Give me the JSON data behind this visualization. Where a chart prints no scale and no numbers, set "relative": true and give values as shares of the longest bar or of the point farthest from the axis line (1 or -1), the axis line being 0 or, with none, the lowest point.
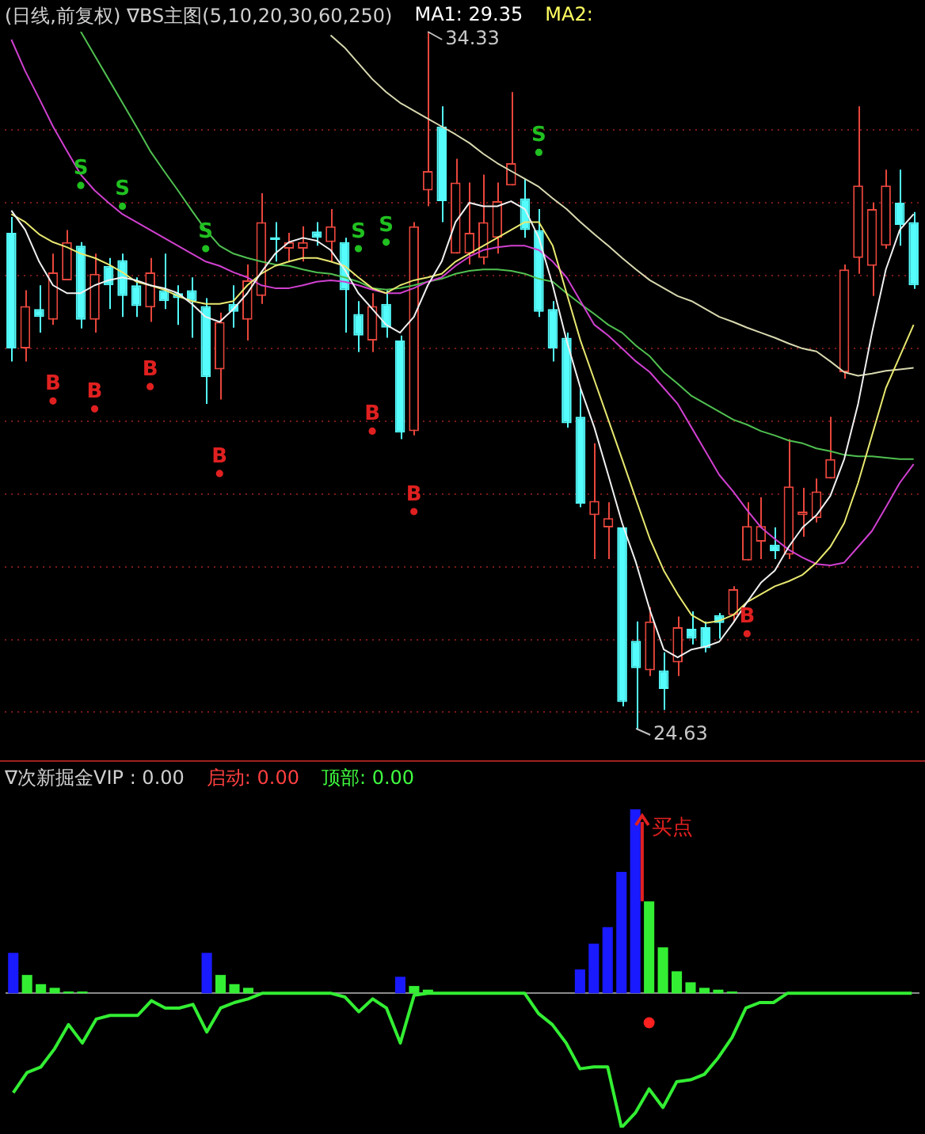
{
  "chart_data": [
    {
      "type": "candlestick",
      "title": "(日线,前复权) ∇BS主图(5,10,20,30,60,250)",
      "annotations": [
        "MA1: 29.35",
        "MA2:",
        "34.33",
        "24.63"
      ],
      "categories": [
        null,
        null,
        null,
        null,
        null,
        null,
        null,
        null,
        null,
        null,
        null,
        null,
        null,
        null,
        null,
        null,
        null,
        null,
        null,
        null,
        null,
        null,
        null,
        null,
        null,
        null,
        null,
        null,
        null,
        null,
        null,
        null,
        null,
        null,
        null,
        null,
        null,
        null,
        null,
        null,
        null,
        null,
        null,
        null,
        null,
        null,
        null,
        null,
        null,
        null,
        null,
        null,
        null,
        null,
        null,
        null,
        null,
        null,
        null,
        null,
        null,
        null,
        null,
        null,
        null,
        null
      ],
      "ohlc": [
        [
          31.53,
          31.75,
          29.74,
          29.92
        ],
        [
          29.92,
          30.73,
          29.74,
          30.51
        ],
        [
          30.47,
          30.8,
          30.14,
          30.36
        ],
        [
          30.32,
          31.24,
          30.25,
          30.98
        ],
        [
          30.87,
          31.57,
          30.87,
          31.4
        ],
        [
          31.35,
          31.4,
          30.2,
          30.32
        ],
        [
          30.32,
          31.24,
          30.14,
          30.96
        ],
        [
          31.07,
          31.18,
          30.47,
          30.8
        ],
        [
          31.15,
          31.24,
          30.36,
          30.65
        ],
        [
          30.8,
          30.91,
          30.36,
          30.51
        ],
        [
          30.49,
          31.18,
          30.29,
          30.98
        ],
        [
          30.73,
          31.24,
          30.47,
          30.58
        ],
        [
          30.69,
          30.8,
          30.25,
          30.62
        ],
        [
          30.73,
          30.91,
          30.07,
          30.58
        ],
        [
          30.51,
          30.62,
          29.15,
          29.52
        ],
        [
          29.63,
          30.42,
          29.21,
          30.29
        ],
        [
          30.54,
          30.8,
          30.21,
          30.43
        ],
        [
          30.32,
          31.09,
          30.03,
          30.87
        ],
        [
          30.65,
          32.08,
          30.54,
          31.68
        ],
        [
          31.47,
          31.68,
          31.13,
          31.43
        ],
        [
          31.31,
          31.53,
          31.13,
          31.4
        ],
        [
          31.31,
          31.62,
          31.13,
          31.4
        ],
        [
          31.55,
          31.68,
          31.35,
          31.46
        ],
        [
          31.4,
          31.86,
          31.13,
          31.62
        ],
        [
          31.4,
          31.46,
          30.14,
          30.73
        ],
        [
          30.4,
          30.58,
          29.87,
          30.1
        ],
        [
          30.03,
          30.69,
          29.87,
          30.51
        ],
        [
          30.54,
          30.73,
          30.07,
          30.21
        ],
        [
          30.03,
          30.1,
          28.66,
          28.75
        ],
        [
          28.77,
          31.68,
          28.71,
          31.62
        ],
        [
          32.12,
          34.33,
          31.9,
          32.39
        ],
        [
          33.01,
          33.29,
          31.68,
          31.97
        ],
        [
          31.24,
          32.56,
          31.24,
          32.23
        ],
        [
          31.24,
          32.23,
          31.09,
          31.53
        ],
        [
          31.18,
          32.34,
          31.09,
          31.68
        ],
        [
          31.46,
          32.23,
          31.24,
          31.97
        ],
        [
          32.19,
          33.49,
          32.19,
          32.5
        ],
        [
          32.01,
          32.28,
          31.46,
          31.57
        ],
        [
          31.57,
          31.86,
          30.36,
          30.43
        ],
        [
          30.47,
          30.58,
          29.74,
          29.92
        ],
        [
          30.07,
          30.14,
          28.82,
          28.88
        ],
        [
          28.97,
          29.37,
          27.71,
          27.76
        ],
        [
          27.6,
          28.6,
          26.99,
          27.8
        ],
        [
          27.43,
          27.78,
          26.99,
          27.56
        ],
        [
          27.43,
          27.43,
          24.94,
          25.0
        ],
        [
          25.85,
          26.12,
          24.63,
          25.47
        ],
        [
          25.44,
          26.32,
          25.36,
          26.12
        ],
        [
          25.44,
          25.69,
          24.89,
          25.18
        ],
        [
          25.55,
          26.19,
          25.36,
          26.04
        ],
        [
          26.02,
          26.26,
          25.8,
          25.88
        ],
        [
          26.04,
          26.12,
          25.69,
          25.75
        ],
        [
          26.21,
          26.24,
          25.88,
          26.1
        ],
        [
          26.21,
          26.61,
          26.12,
          26.57
        ],
        [
          26.97,
          27.78,
          26.97,
          27.45
        ],
        [
          27.23,
          27.85,
          26.99,
          27.45
        ],
        [
          27.19,
          27.43,
          26.99,
          27.1
        ],
        [
          27.05,
          28.66,
          26.99,
          28.0
        ],
        [
          27.6,
          27.98,
          27.3,
          27.65
        ],
        [
          27.56,
          28.11,
          27.5,
          27.93
        ],
        [
          28.11,
          28.97,
          28.11,
          28.38
        ],
        [
          29.59,
          31.09,
          29.5,
          31.02
        ],
        [
          31.18,
          33.29,
          30.96,
          32.19
        ],
        [
          31.07,
          31.95,
          30.65,
          31.86
        ],
        [
          31.35,
          32.41,
          31.31,
          32.19
        ],
        [
          31.95,
          32.41,
          31.35,
          31.64
        ],
        [
          31.68,
          31.82,
          30.75,
          30.8
        ]
      ],
      "colors": [
        "#54fcfc",
        "#e8463c",
        "#54fcfc",
        "#e8463c",
        "#e8463c",
        "#54fcfc",
        "#e8463c",
        "#54fcfc",
        "#54fcfc",
        "#54fcfc",
        "#e8463c",
        "#54fcfc",
        "#54fcfc",
        "#54fcfc",
        "#54fcfc",
        "#e8463c",
        "#54fcfc",
        "#e8463c",
        "#e8463c",
        "#54fcfc",
        "#e8463c",
        "#e8463c",
        "#54fcfc",
        "#e8463c",
        "#54fcfc",
        "#54fcfc",
        "#e8463c",
        "#54fcfc",
        "#54fcfc",
        "#e8463c",
        "#e8463c",
        "#54fcfc",
        "#e8463c",
        "#e8463c",
        "#e8463c",
        "#e8463c",
        "#e8463c",
        "#54fcfc",
        "#54fcfc",
        "#54fcfc",
        "#54fcfc",
        "#54fcfc",
        "#e8463c",
        "#e8463c",
        "#54fcfc",
        "#54fcfc",
        "#e8463c",
        "#54fcfc",
        "#e8463c",
        "#54fcfc",
        "#54fcfc",
        "#54fcfc",
        "#e8463c",
        "#e8463c",
        "#e8463c",
        "#54fcfc",
        "#e8463c",
        "#e8463c",
        "#e8463c",
        "#e8463c",
        "#e8463c",
        "#e8463c",
        "#e8463c",
        "#e8463c",
        "#54fcfc",
        "#54fcfc"
      ],
      "series": [
        {
          "type": "line",
          "color": "#f0f0f0",
          "values": [
            31.84,
            31.57,
            31.13,
            30.8,
            30.69,
            30.69,
            30.8,
            30.87,
            30.91,
            30.87,
            30.8,
            30.76,
            30.69,
            30.54,
            30.36,
            30.29,
            30.47,
            30.69,
            30.98,
            31.24,
            31.4,
            31.46,
            31.42,
            31.29,
            31.02,
            30.69,
            30.47,
            30.25,
            30.14,
            30.36,
            30.8,
            31.13,
            31.68,
            31.95,
            31.9,
            31.9,
            31.97,
            31.86,
            31.46,
            30.8,
            30.03,
            29.37,
            28.82,
            28.16,
            27.49,
            26.94,
            26.28,
            25.73,
            25.62,
            25.73,
            25.77,
            25.84,
            26.1,
            26.39,
            26.66,
            26.83,
            27.16,
            27.43,
            27.6,
            27.87,
            28.38,
            29.15,
            30.14,
            31.02,
            31.57,
            31.79
          ]
        },
        {
          "type": "line",
          "color": "#e8e870",
          "values": [
            31.79,
            31.68,
            31.51,
            31.4,
            31.33,
            31.24,
            31.18,
            31.09,
            30.98,
            30.85,
            30.8,
            30.74,
            30.65,
            30.58,
            30.54,
            30.54,
            30.58,
            30.8,
            30.96,
            31.07,
            31.13,
            31.18,
            31.18,
            31.13,
            31.07,
            30.91,
            30.76,
            30.69,
            30.8,
            30.87,
            30.91,
            30.96,
            31.13,
            31.24,
            31.35,
            31.46,
            31.57,
            31.68,
            31.68,
            31.35,
            30.69,
            30.03,
            29.48,
            28.93,
            28.38,
            27.82,
            27.27,
            26.83,
            26.5,
            26.21,
            26.1,
            26.13,
            26.21,
            26.39,
            26.5,
            26.61,
            26.68,
            26.77,
            26.94,
            27.16,
            27.49,
            28.05,
            28.71,
            29.37,
            29.81,
            30.25
          ]
        },
        {
          "type": "line",
          "color": "#d040d0",
          "values": [
            34.22,
            33.78,
            33.4,
            33.01,
            32.67,
            32.34,
            32.12,
            31.95,
            31.79,
            31.68,
            31.57,
            31.46,
            31.35,
            31.24,
            31.13,
            31.07,
            30.98,
            30.91,
            30.8,
            30.76,
            30.76,
            30.8,
            30.85,
            30.87,
            30.85,
            30.8,
            30.74,
            30.69,
            30.69,
            30.76,
            30.85,
            30.91,
            31.07,
            31.2,
            31.29,
            31.33,
            31.35,
            31.35,
            31.29,
            31.13,
            30.91,
            30.58,
            30.25,
            30.1,
            29.92,
            29.74,
            29.59,
            29.37,
            29.15,
            28.82,
            28.49,
            28.16,
            27.93,
            27.67,
            27.43,
            27.27,
            27.12,
            27.01,
            26.92,
            26.9,
            26.94,
            27.16,
            27.38,
            27.71,
            28.05,
            28.31
          ]
        },
        {
          "type": "line",
          "color": "#50c050",
          "values": [
            null,
            null,
            null,
            null,
            null,
            34.33,
            34.0,
            33.67,
            33.34,
            33.01,
            32.67,
            32.39,
            32.12,
            31.84,
            31.57,
            31.35,
            31.24,
            31.18,
            31.13,
            31.09,
            31.07,
            31.02,
            30.98,
            30.96,
            30.91,
            30.85,
            30.76,
            30.74,
            30.76,
            30.8,
            30.85,
            30.89,
            30.96,
            31.0,
            31.02,
            31.02,
            31.0,
            30.96,
            30.89,
            30.85,
            30.69,
            30.54,
            30.4,
            30.25,
            30.14,
            29.96,
            29.81,
            29.59,
            29.43,
            29.26,
            29.15,
            29.04,
            28.93,
            28.86,
            28.77,
            28.71,
            28.64,
            28.6,
            28.53,
            28.49,
            28.44,
            28.42,
            28.42,
            28.4,
            28.38,
            28.38
          ]
        },
        {
          "type": "line",
          "color": "#d8d8b0",
          "values": [
            null,
            null,
            null,
            null,
            null,
            null,
            null,
            null,
            null,
            null,
            null,
            null,
            null,
            null,
            null,
            null,
            null,
            null,
            null,
            null,
            null,
            null,
            null,
            34.28,
            34.11,
            33.89,
            33.67,
            33.49,
            33.34,
            33.23,
            33.12,
            33.01,
            32.9,
            32.78,
            32.63,
            32.5,
            32.39,
            32.28,
            32.17,
            32.01,
            31.86,
            31.68,
            31.51,
            31.35,
            31.18,
            31.02,
            30.87,
            30.76,
            30.65,
            30.58,
            30.47,
            30.36,
            30.29,
            30.21,
            30.14,
            30.07,
            29.99,
            29.92,
            29.88,
            29.74,
            29.59,
            29.54,
            29.57,
            29.61,
            29.63,
            29.65
          ]
        },
        {
          "type": "scatter",
          "color": "#e02020",
          "marker": "circle",
          "values": [
            null,
            null,
            null,
            29.19,
            null,
            null,
            29.08,
            null,
            null,
            null,
            29.39,
            null,
            null,
            null,
            null,
            28.18,
            null,
            null,
            null,
            null,
            null,
            null,
            null,
            null,
            null,
            null,
            28.77,
            null,
            null,
            27.65,
            null,
            null,
            null,
            null,
            null,
            null,
            null,
            null,
            null,
            null,
            null,
            null,
            null,
            null,
            null,
            null,
            null,
            null,
            null,
            null,
            null,
            null,
            null,
            25.95,
            null,
            null,
            null,
            null,
            null,
            null,
            null,
            null,
            null,
            null,
            null,
            null
          ],
          "value_labels": [
            null,
            null,
            null,
            "B",
            null,
            null,
            "B",
            null,
            null,
            null,
            "B",
            null,
            null,
            null,
            null,
            "B",
            null,
            null,
            null,
            null,
            null,
            null,
            null,
            null,
            null,
            null,
            "B",
            null,
            null,
            "B",
            null,
            null,
            null,
            null,
            null,
            null,
            null,
            null,
            null,
            null,
            null,
            null,
            null,
            null,
            null,
            null,
            null,
            null,
            null,
            null,
            null,
            null,
            null,
            "B",
            null,
            null,
            null,
            null,
            null,
            null,
            null,
            null,
            null,
            null,
            null,
            null
          ]
        },
        {
          "type": "scatter",
          "color": "#20c020",
          "marker": "circle",
          "values": [
            null,
            null,
            null,
            null,
            null,
            32.19,
            null,
            null,
            31.9,
            null,
            null,
            null,
            null,
            null,
            31.31,
            null,
            null,
            null,
            null,
            null,
            null,
            null,
            null,
            null,
            null,
            31.31,
            null,
            31.4,
            null,
            null,
            null,
            null,
            null,
            null,
            null,
            null,
            null,
            null,
            32.65,
            null,
            null,
            null,
            null,
            null,
            null,
            null,
            null,
            null,
            null,
            null,
            null,
            null,
            null,
            null,
            null,
            null,
            null,
            null,
            null,
            null,
            null,
            null,
            null,
            null,
            null,
            null
          ],
          "value_labels": [
            null,
            null,
            null,
            null,
            null,
            "S",
            null,
            null,
            "S",
            null,
            null,
            null,
            null,
            null,
            "S",
            null,
            null,
            null,
            null,
            null,
            null,
            null,
            null,
            null,
            null,
            "S",
            null,
            "S",
            null,
            null,
            null,
            null,
            null,
            null,
            null,
            null,
            null,
            null,
            "S",
            null,
            null,
            null,
            null,
            null,
            null,
            null,
            null,
            null,
            null,
            null,
            null,
            null,
            null,
            null,
            null,
            null,
            null,
            null,
            null,
            null,
            null,
            null,
            null,
            null,
            null,
            null
          ]
        }
      ],
      "yticks": [
        {
          "value": 32.96,
          "label": null
        },
        {
          "value": 31.95,
          "label": null
        },
        {
          "value": 30.93,
          "label": null
        },
        {
          "value": 29.92,
          "label": null
        },
        {
          "value": 28.91,
          "label": null
        },
        {
          "value": 27.89,
          "label": null
        },
        {
          "value": 26.88,
          "label": null
        },
        {
          "value": 25.87,
          "label": null
        },
        {
          "value": 24.86,
          "label": null
        }
      ],
      "grid": "y"
    },
    {
      "type": "bar",
      "title": "∇次新掘金VIP : 0.00",
      "annotations": [
        "启动: 0.00",
        "顶部: 0.00",
        "买点"
      ],
      "relative": true,
      "categories": [
        null,
        null,
        null,
        null,
        null,
        null,
        null,
        null,
        null,
        null,
        null,
        null,
        null,
        null,
        null,
        null,
        null,
        null,
        null,
        null,
        null,
        null,
        null,
        null,
        null,
        null,
        null,
        null,
        null,
        null,
        null,
        null,
        null,
        null,
        null,
        null,
        null,
        null,
        null,
        null,
        null,
        null,
        null,
        null,
        null,
        null,
        null,
        null,
        null,
        null,
        null,
        null,
        null,
        null,
        null,
        null,
        null,
        null,
        null,
        null,
        null,
        null,
        null,
        null,
        null,
        null
      ],
      "series": [
        {
          "type": "bar",
          "colors": [
            "#1a1aff",
            "#33ee33",
            "#33ee33",
            "#33ee33",
            "#33ee33",
            "#33ee33",
            null,
            null,
            null,
            null,
            null,
            null,
            null,
            null,
            "#1a1aff",
            "#33ee33",
            "#33ee33",
            "#33ee33",
            null,
            null,
            null,
            null,
            null,
            null,
            null,
            null,
            null,
            null,
            "#1a1aff",
            "#33ee33",
            "#33ee33",
            null,
            null,
            null,
            null,
            null,
            null,
            null,
            null,
            null,
            null,
            "#1a1aff",
            "#1a1aff",
            "#1a1aff",
            "#1a1aff",
            "#1a1aff",
            "#33ee33",
            "#33ee33",
            "#33ee33",
            "#33ee33",
            "#33ee33",
            "#33ee33",
            "#33ee33",
            null,
            null,
            null,
            null,
            null,
            null,
            null,
            null,
            null,
            null,
            null,
            null,
            null
          ],
          "values": [
            0.22,
            0.1,
            0.05,
            0.03,
            0.01,
            0.01,
            null,
            null,
            null,
            null,
            null,
            null,
            null,
            null,
            0.22,
            0.1,
            0.05,
            0.03,
            null,
            null,
            null,
            null,
            null,
            null,
            null,
            null,
            null,
            null,
            0.09,
            0.04,
            0.02,
            null,
            null,
            null,
            null,
            null,
            null,
            null,
            null,
            null,
            null,
            0.13,
            0.27,
            0.36,
            0.66,
            1,
            0.5,
            0.25,
            0.12,
            0.06,
            0.03,
            0.02,
            0.01,
            null,
            null,
            null,
            null,
            null,
            null,
            null,
            null,
            null,
            null,
            null,
            null,
            null
          ]
        },
        {
          "type": "line",
          "color": "#33ee33",
          "values": [
            -0.54,
            -0.43,
            -0.4,
            -0.3,
            -0.17,
            -0.27,
            -0.14,
            -0.12,
            -0.12,
            -0.12,
            -0.04,
            -0.08,
            -0.08,
            -0.06,
            -0.21,
            -0.08,
            -0.05,
            -0.03,
            0,
            0,
            0,
            0,
            0,
            0,
            -0.02,
            -0.1,
            -0.03,
            -0.08,
            -0.27,
            -0.01,
            0,
            0,
            0,
            0,
            0,
            0,
            0,
            0,
            -0.11,
            -0.17,
            -0.27,
            -0.41,
            -0.4,
            -0.4,
            -0.73,
            -0.65,
            -0.52,
            -0.62,
            -0.48,
            -0.47,
            -0.44,
            -0.35,
            -0.24,
            -0.08,
            -0.05,
            -0.05,
            0,
            0,
            0,
            0,
            0,
            0,
            0,
            0,
            0,
            0
          ]
        },
        {
          "type": "scatter",
          "color": "#ff2020",
          "marker": "circle",
          "values": [
            null,
            null,
            null,
            null,
            null,
            null,
            null,
            null,
            null,
            null,
            null,
            null,
            null,
            null,
            null,
            null,
            null,
            null,
            null,
            null,
            null,
            null,
            null,
            null,
            null,
            null,
            null,
            null,
            null,
            null,
            null,
            null,
            null,
            null,
            null,
            null,
            null,
            null,
            null,
            null,
            null,
            null,
            null,
            null,
            null,
            null,
            -0.16,
            null,
            null,
            null,
            null,
            null,
            null,
            null,
            null,
            null,
            null,
            null,
            null,
            null,
            null,
            null,
            null,
            null,
            null,
            null
          ]
        }
      ]
    }
  ]
}
